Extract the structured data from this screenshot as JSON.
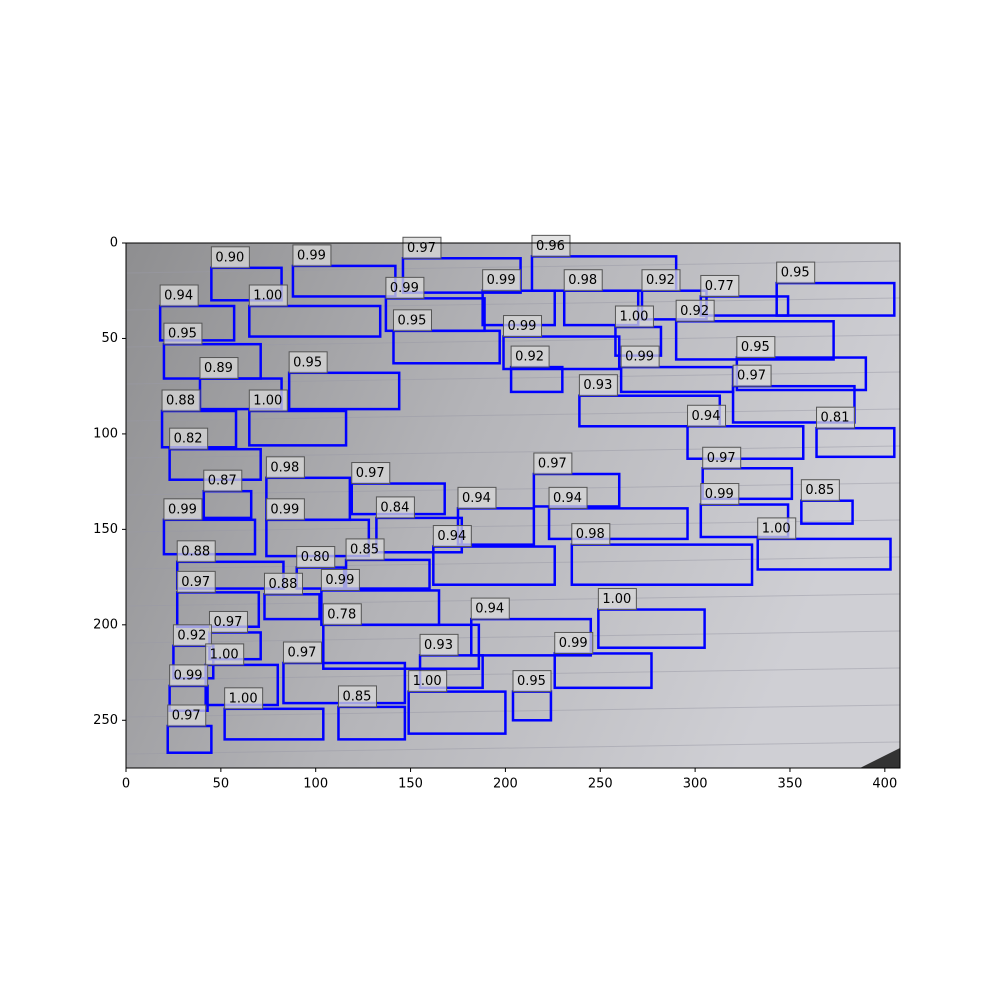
{
  "chart_data": {
    "type": "detection",
    "xlim": [
      0,
      408
    ],
    "ylim": [
      275,
      0
    ],
    "xticks": [
      0,
      50,
      100,
      150,
      200,
      250,
      300,
      350,
      400
    ],
    "yticks": [
      0,
      50,
      100,
      150,
      200,
      250
    ],
    "color": "#0000ff",
    "boxes": [
      [
        45,
        13,
        82,
        30
      ],
      [
        88,
        12,
        142,
        28
      ],
      [
        146,
        8,
        208,
        26
      ],
      [
        214,
        7,
        290,
        25
      ],
      [
        18,
        33,
        57,
        51
      ],
      [
        65,
        33,
        134,
        49
      ],
      [
        137,
        29,
        189,
        46
      ],
      [
        188,
        25,
        226,
        43
      ],
      [
        231,
        25,
        270,
        43
      ],
      [
        272,
        25,
        306,
        40
      ],
      [
        303,
        28,
        349,
        38
      ],
      [
        343,
        21,
        405,
        38
      ],
      [
        141,
        46,
        197,
        63
      ],
      [
        199,
        49,
        260,
        66
      ],
      [
        258,
        44,
        282,
        59
      ],
      [
        290,
        41,
        373,
        61
      ],
      [
        20,
        53,
        71,
        71
      ],
      [
        261,
        65,
        320,
        78
      ],
      [
        322,
        60,
        390,
        77
      ],
      [
        203,
        65,
        230,
        78
      ],
      [
        39,
        71,
        82,
        87
      ],
      [
        86,
        68,
        144,
        87
      ],
      [
        239,
        80,
        313,
        96
      ],
      [
        320,
        75,
        384,
        94
      ],
      [
        19,
        88,
        58,
        107
      ],
      [
        65,
        88,
        116,
        106
      ],
      [
        296,
        96,
        357,
        113
      ],
      [
        364,
        97,
        405,
        112
      ],
      [
        23,
        108,
        71,
        124
      ],
      [
        74,
        123,
        118,
        145
      ],
      [
        119,
        126,
        168,
        142
      ],
      [
        215,
        121,
        260,
        138
      ],
      [
        304,
        118,
        351,
        134
      ],
      [
        41,
        130,
        66,
        144
      ],
      [
        356,
        135,
        383,
        147
      ],
      [
        303,
        137,
        349,
        154
      ],
      [
        223,
        139,
        296,
        155
      ],
      [
        175,
        139,
        215,
        158
      ],
      [
        132,
        144,
        177,
        162
      ],
      [
        74,
        145,
        128,
        164
      ],
      [
        20,
        145,
        68,
        163
      ],
      [
        162,
        159,
        226,
        179
      ],
      [
        235,
        158,
        330,
        179
      ],
      [
        333,
        155,
        403,
        171
      ],
      [
        27,
        167,
        83,
        181
      ],
      [
        90,
        170,
        115,
        181
      ],
      [
        116,
        166,
        160,
        181
      ],
      [
        27,
        183,
        70,
        201
      ],
      [
        73,
        184,
        102,
        197
      ],
      [
        103,
        182,
        165,
        200
      ],
      [
        249,
        192,
        305,
        212
      ],
      [
        182,
        197,
        245,
        216
      ],
      [
        104,
        200,
        186,
        223
      ],
      [
        44,
        204,
        71,
        218
      ],
      [
        25,
        211,
        46,
        228
      ],
      [
        155,
        216,
        188,
        233
      ],
      [
        226,
        215,
        277,
        233
      ],
      [
        42,
        221,
        80,
        242
      ],
      [
        83,
        220,
        147,
        241
      ],
      [
        23,
        232,
        43,
        245
      ],
      [
        204,
        235,
        224,
        250
      ],
      [
        149,
        235,
        200,
        257
      ],
      [
        112,
        243,
        147,
        260
      ],
      [
        52,
        244,
        104,
        260
      ],
      [
        22,
        253,
        45,
        267
      ]
    ],
    "values": [
      0.9,
      0.99,
      0.97,
      0.96,
      0.94,
      1,
      0.99,
      0.99,
      0.98,
      0.92,
      0.77,
      0.95,
      0.95,
      0.99,
      1,
      0.92,
      0.95,
      0.99,
      0.95,
      0.92,
      0.89,
      0.95,
      0.93,
      0.97,
      0.88,
      1,
      0.94,
      0.81,
      0.82,
      0.98,
      0.97,
      0.97,
      0.97,
      0.87,
      0.85,
      0.99,
      0.94,
      0.94,
      0.84,
      0.99,
      0.99,
      0.94,
      0.98,
      1,
      0.88,
      0.8,
      0.85,
      0.97,
      0.88,
      0.99,
      1,
      0.94,
      0.78,
      0.97,
      0.92,
      0.93,
      0.99,
      1,
      0.97,
      0.99,
      0.95,
      1,
      0.85,
      1,
      0.97
    ],
    "value_labels": [
      "0.90",
      "0.99",
      "0.97",
      "0.96",
      "0.94",
      "1.00",
      "0.99",
      "0.99",
      "0.98",
      "0.92",
      "0.77",
      "0.95",
      "0.95",
      "0.99",
      "1.00",
      "0.92",
      "0.95",
      "0.99",
      "0.95",
      "0.92",
      "0.89",
      "0.95",
      "0.93",
      "0.97",
      "0.88",
      "1.00",
      "0.94",
      "0.81",
      "0.82",
      "0.98",
      "0.97",
      "0.97",
      "0.97",
      "0.87",
      "0.85",
      "0.99",
      "0.94",
      "0.94",
      "0.84",
      "0.99",
      "0.99",
      "0.94",
      "0.98",
      "1.00",
      "0.88",
      "0.80",
      "0.85",
      "0.97",
      "0.88",
      "0.99",
      "1.00",
      "0.94",
      "0.78",
      "0.97",
      "0.92",
      "0.93",
      "0.99",
      "1.00",
      "0.97",
      "0.99",
      "0.95",
      "1.00",
      "0.85",
      "1.00",
      "0.97"
    ]
  }
}
